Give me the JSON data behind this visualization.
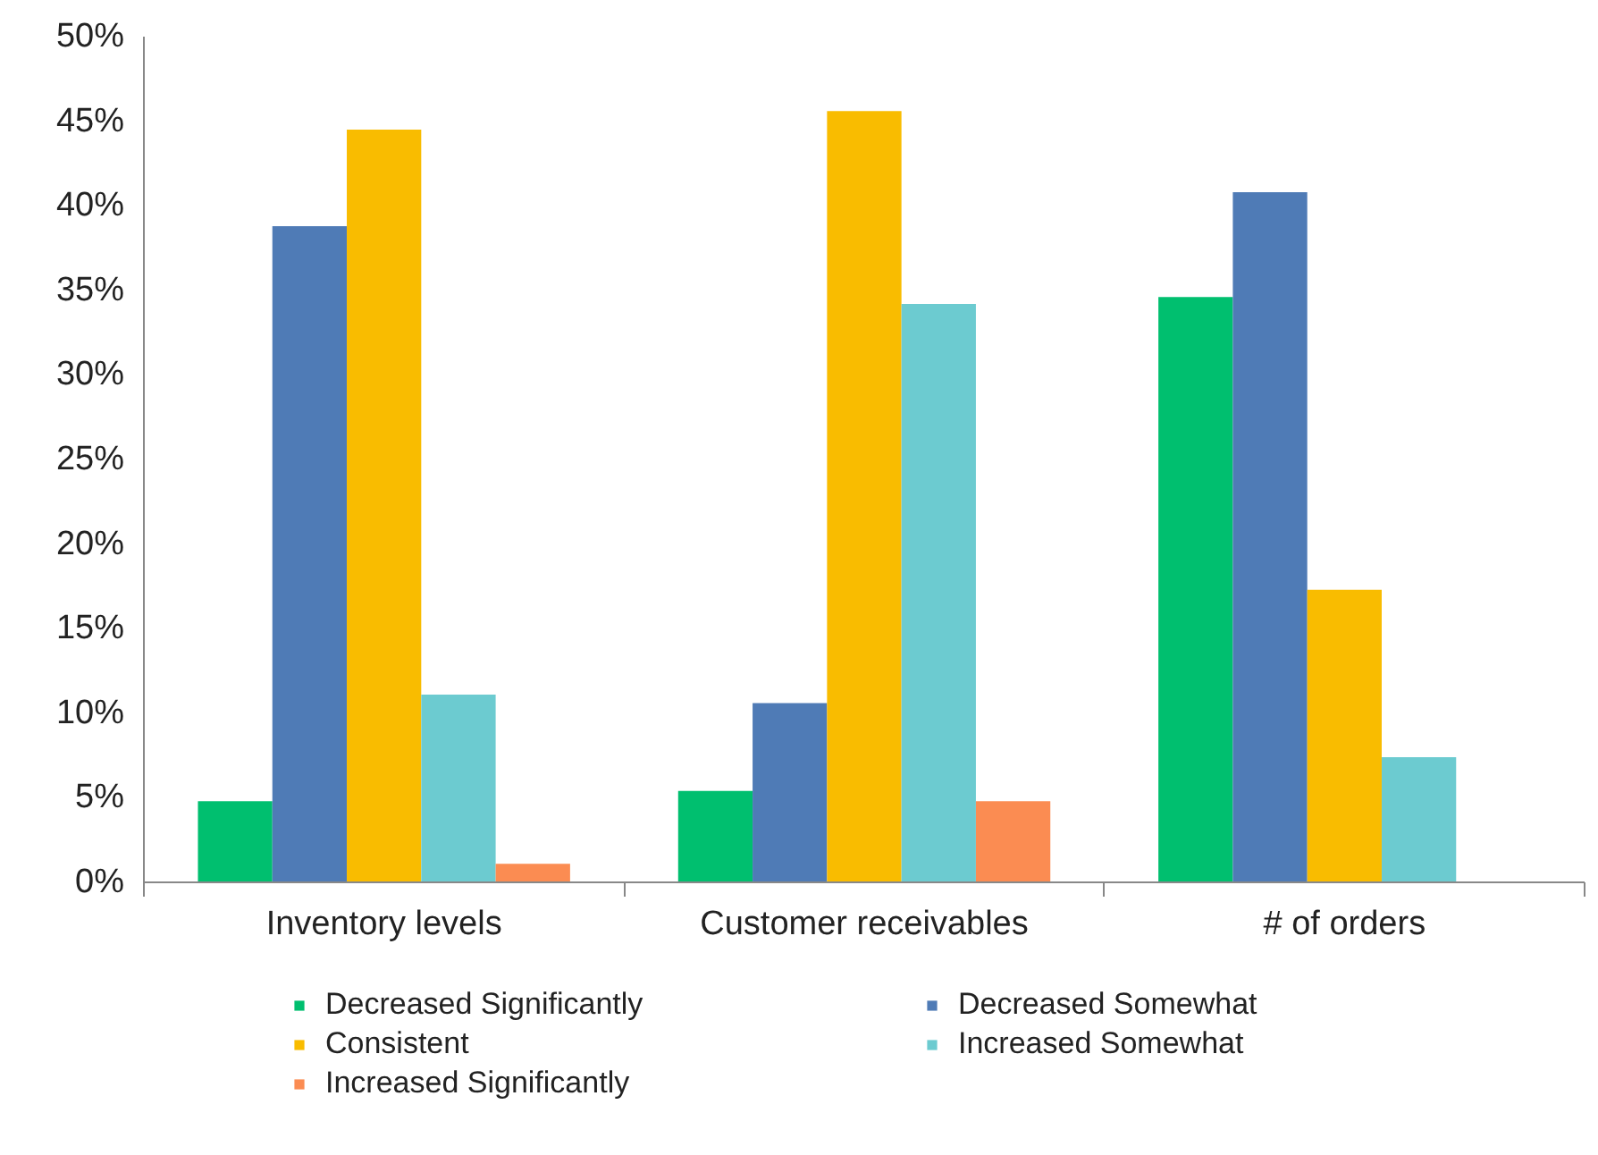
{
  "chart_data": {
    "type": "bar",
    "categories": [
      "Inventory levels",
      "Customer receivables",
      "# of orders"
    ],
    "series": [
      {
        "name": "Decreased Significantly",
        "color": "#00bf6f",
        "values": [
          4.8,
          5.4,
          34.6
        ]
      },
      {
        "name": "Decreased Somewhat",
        "color": "#4f7bb6",
        "values": [
          38.8,
          10.6,
          40.8
        ]
      },
      {
        "name": "Consistent",
        "color": "#f9bc00",
        "values": [
          44.5,
          45.6,
          17.3
        ]
      },
      {
        "name": "Increased Somewhat",
        "color": "#6ccbd0",
        "values": [
          11.1,
          34.2,
          7.4
        ]
      },
      {
        "name": "Increased Significantly",
        "color": "#fb8c52",
        "values": [
          1.1,
          4.8,
          0
        ]
      }
    ],
    "ylim": [
      0,
      50
    ],
    "yticks": [
      {
        "value": 0,
        "label": "0%"
      },
      {
        "value": 5,
        "label": "5%"
      },
      {
        "value": 10,
        "label": "10%"
      },
      {
        "value": 15,
        "label": "15%"
      },
      {
        "value": 20,
        "label": "20%"
      },
      {
        "value": 25,
        "label": "25%"
      },
      {
        "value": 30,
        "label": "30%"
      },
      {
        "value": 35,
        "label": "35%"
      },
      {
        "value": 40,
        "label": "40%"
      },
      {
        "value": 45,
        "label": "45%"
      },
      {
        "value": 50,
        "label": "50%"
      }
    ],
    "grid": false,
    "legend": "bottom"
  }
}
